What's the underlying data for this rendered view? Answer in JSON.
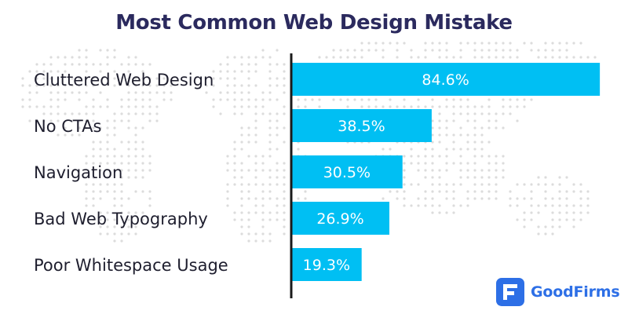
{
  "page": {
    "title": "Most Common Web Design Mistake"
  },
  "chart_data": {
    "type": "bar",
    "orientation": "horizontal",
    "title": "Most Common Web Design Mistake",
    "categories": [
      "Cluttered Web Design",
      "No CTAs",
      "Navigation",
      "Bad Web Typography",
      "Poor Whitespace Usage"
    ],
    "values": [
      84.6,
      38.5,
      30.5,
      26.9,
      19.3
    ],
    "value_labels": [
      "84.6%",
      "38.5%",
      "30.5%",
      "26.9%",
      "19.3%"
    ],
    "xlim": [
      0,
      85
    ],
    "bar_color": "#00bff3",
    "axis_color": "#1a1a1a",
    "grid": false,
    "legend": "none"
  },
  "branding": {
    "logo_text": "GoodFirms",
    "logo_color": "#2d6fe6",
    "logo_icon": "goodfirms-logo-icon"
  },
  "colors": {
    "title": "#2b2a5e",
    "background_dots": "#dcdcdc"
  }
}
